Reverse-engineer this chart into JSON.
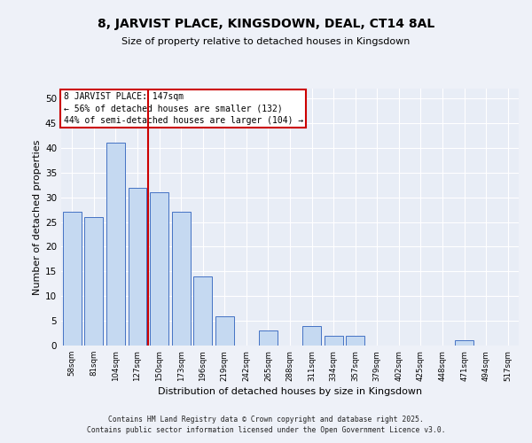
{
  "title_line1": "8, JARVIST PLACE, KINGSDOWN, DEAL, CT14 8AL",
  "title_line2": "Size of property relative to detached houses in Kingsdown",
  "xlabel": "Distribution of detached houses by size in Kingsdown",
  "ylabel": "Number of detached properties",
  "categories": [
    "58sqm",
    "81sqm",
    "104sqm",
    "127sqm",
    "150sqm",
    "173sqm",
    "196sqm",
    "219sqm",
    "242sqm",
    "265sqm",
    "288sqm",
    "311sqm",
    "334sqm",
    "357sqm",
    "379sqm",
    "402sqm",
    "425sqm",
    "448sqm",
    "471sqm",
    "494sqm",
    "517sqm"
  ],
  "values": [
    27,
    26,
    41,
    32,
    31,
    27,
    14,
    6,
    0,
    3,
    0,
    4,
    2,
    2,
    0,
    0,
    0,
    0,
    1,
    0,
    0
  ],
  "bar_color": "#c5d9f1",
  "bar_edge_color": "#4472c4",
  "annotation_line1": "8 JARVIST PLACE: 147sqm",
  "annotation_line2": "← 56% of detached houses are smaller (132)",
  "annotation_line3": "44% of semi-detached houses are larger (104) →",
  "annotation_box_color": "#ffffff",
  "annotation_box_edge": "#cc0000",
  "vline_color": "#cc0000",
  "vline_x": 3.5,
  "ylim": [
    0,
    52
  ],
  "yticks": [
    0,
    5,
    10,
    15,
    20,
    25,
    30,
    35,
    40,
    45,
    50
  ],
  "fig_bg_color": "#eef1f8",
  "ax_bg_color": "#e8edf6",
  "footer_line1": "Contains HM Land Registry data © Crown copyright and database right 2025.",
  "footer_line2": "Contains public sector information licensed under the Open Government Licence v3.0."
}
